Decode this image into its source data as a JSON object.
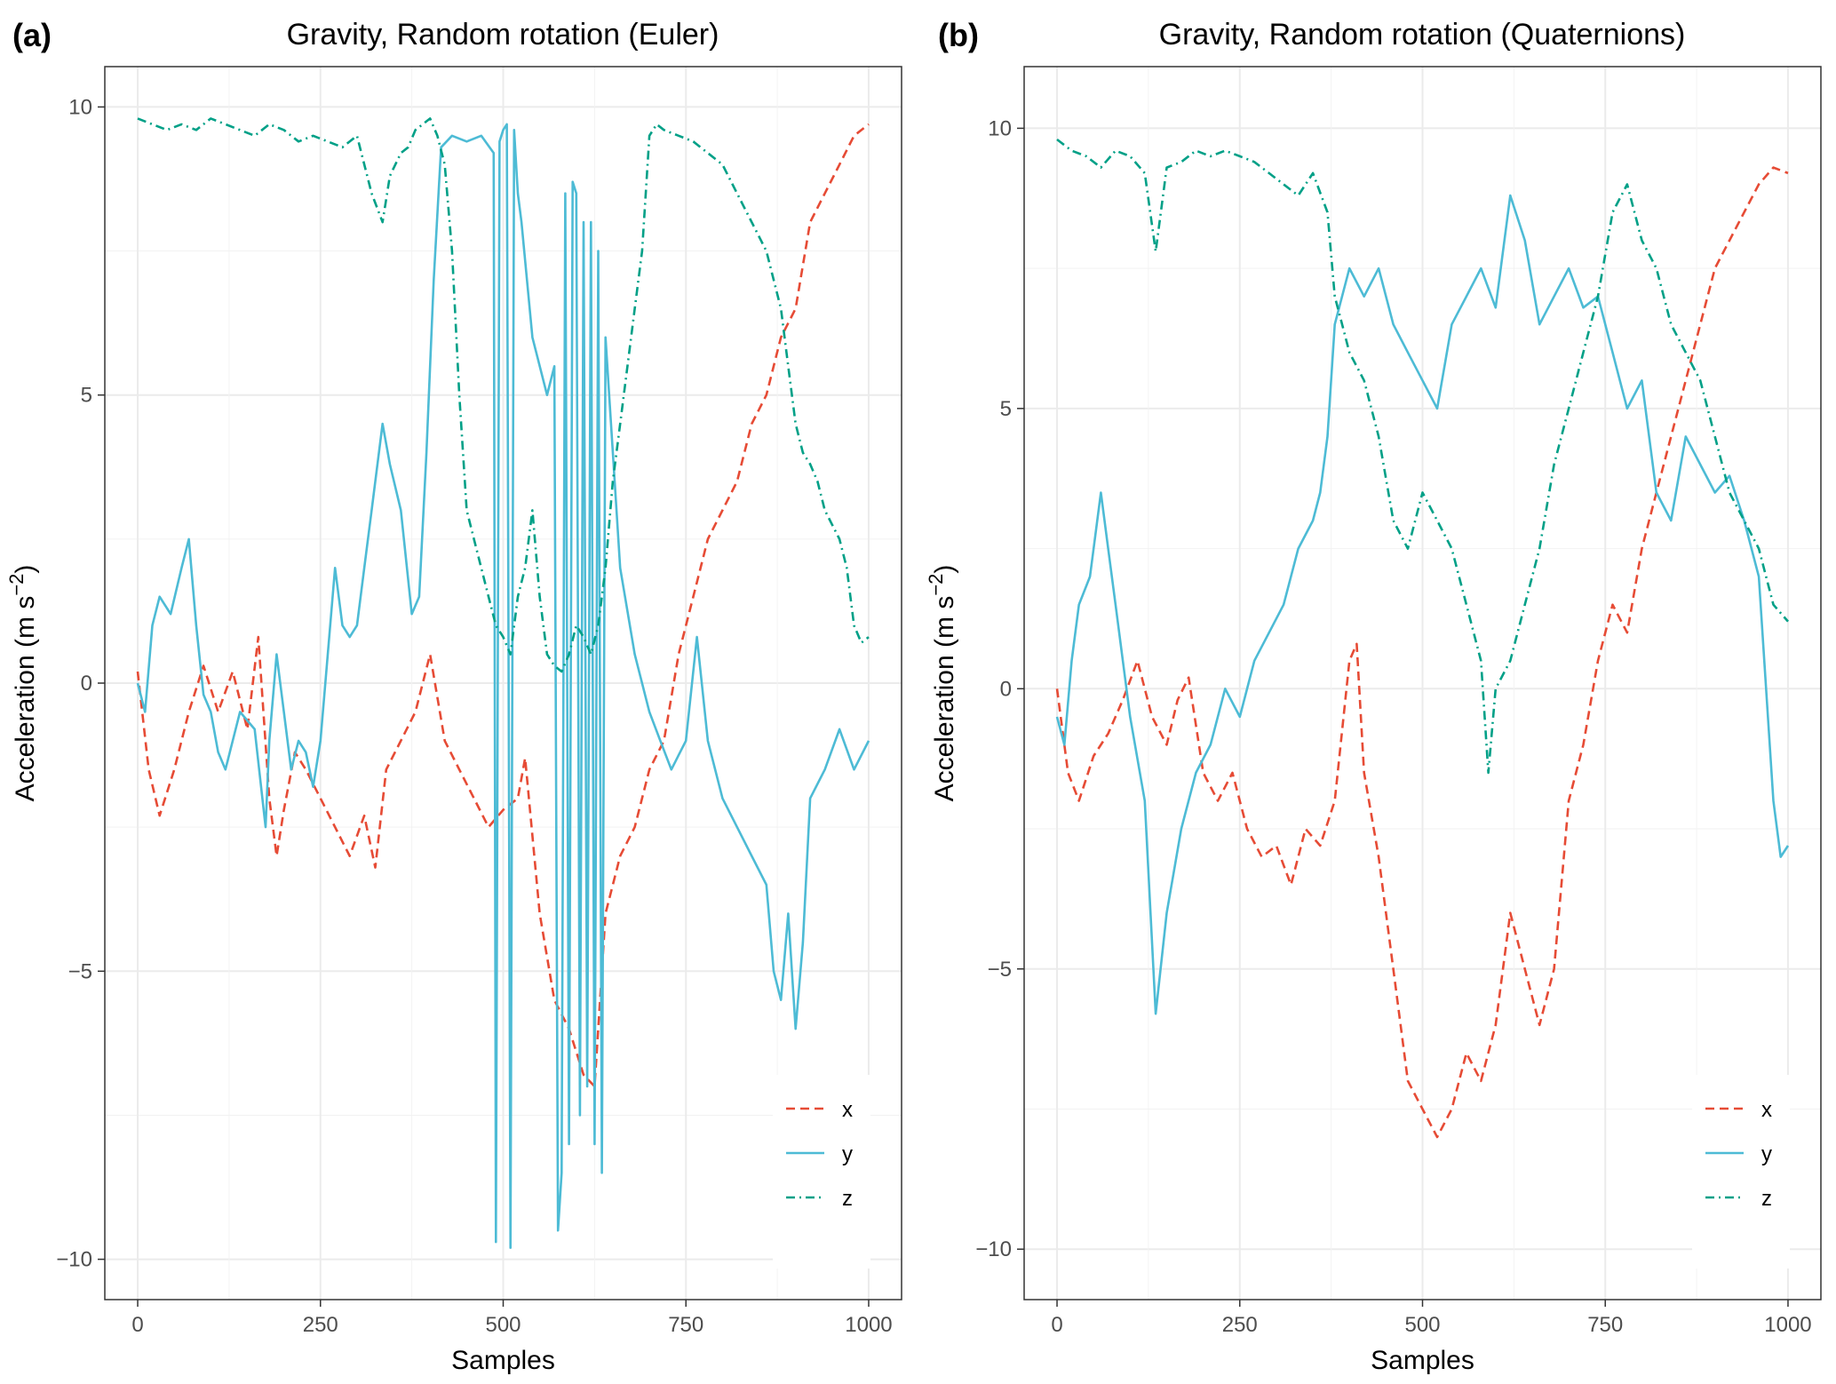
{
  "chart_data": [
    {
      "type": "line",
      "panel_label": "(a)",
      "title": "Gravity, Random rotation (Euler)",
      "xlabel": "Samples",
      "ylabel": "Acceleration (m s",
      "ylabel_exponent": "−2",
      "ylabel_close": ")",
      "xlim": [
        -45,
        1045
      ],
      "ylim": [
        -10.7,
        10.7
      ],
      "xticks": [
        0,
        250,
        500,
        750,
        1000
      ],
      "xtick_labels": [
        "0",
        "250",
        "500",
        "750",
        "1000"
      ],
      "yticks": [
        -10,
        -5,
        0,
        5,
        10
      ],
      "ytick_labels": [
        "−10",
        "−5",
        "0",
        "5",
        "10"
      ],
      "grid": true,
      "legend": {
        "position": "bottom-right",
        "entries": [
          "x",
          "y",
          "z"
        ]
      },
      "series": [
        {
          "name": "x",
          "color": "#E64B35",
          "dash": "dashed",
          "x": [
            0,
            15,
            30,
            50,
            70,
            90,
            110,
            130,
            150,
            165,
            180,
            190,
            200,
            215,
            230,
            250,
            270,
            290,
            310,
            325,
            340,
            360,
            380,
            400,
            420,
            440,
            460,
            480,
            500,
            520,
            530,
            550,
            570,
            590,
            610,
            625,
            640,
            660,
            680,
            700,
            720,
            740,
            760,
            780,
            800,
            820,
            840,
            860,
            880,
            900,
            920,
            940,
            960,
            980,
            1000
          ],
          "y": [
            0.2,
            -1.5,
            -2.3,
            -1.5,
            -0.5,
            0.3,
            -0.5,
            0.2,
            -0.8,
            0.8,
            -2.0,
            -3.0,
            -2.2,
            -1.2,
            -1.5,
            -2.0,
            -2.5,
            -3.0,
            -2.3,
            -3.2,
            -1.5,
            -1.0,
            -0.5,
            0.5,
            -1.0,
            -1.5,
            -2.0,
            -2.5,
            -2.2,
            -2.0,
            -1.3,
            -4.0,
            -5.5,
            -6.0,
            -6.8,
            -7.0,
            -4.0,
            -3.0,
            -2.5,
            -1.5,
            -1.0,
            0.5,
            1.5,
            2.5,
            3.0,
            3.5,
            4.5,
            5.0,
            6.0,
            6.5,
            8.0,
            8.5,
            9.0,
            9.5,
            9.7
          ]
        },
        {
          "name": "y",
          "color": "#4DBBD5",
          "dash": "solid",
          "x": [
            0,
            10,
            20,
            30,
            45,
            60,
            70,
            80,
            90,
            100,
            110,
            120,
            140,
            160,
            175,
            180,
            190,
            200,
            210,
            220,
            230,
            240,
            250,
            260,
            270,
            280,
            290,
            300,
            310,
            320,
            335,
            345,
            360,
            375,
            385,
            395,
            405,
            415,
            430,
            450,
            470,
            487,
            490,
            495,
            500,
            505,
            510,
            515,
            520,
            525,
            540,
            560,
            570,
            575,
            580,
            585,
            590,
            595,
            600,
            605,
            610,
            615,
            620,
            625,
            630,
            635,
            640,
            660,
            680,
            700,
            715,
            730,
            750,
            765,
            780,
            800,
            820,
            840,
            860,
            870,
            880,
            890,
            900,
            910,
            920,
            940,
            960,
            980,
            1000
          ],
          "y": [
            0,
            -0.5,
            1.0,
            1.5,
            1.2,
            2.0,
            2.5,
            1.0,
            -0.2,
            -0.5,
            -1.2,
            -1.5,
            -0.5,
            -0.8,
            -2.5,
            -1.0,
            0.5,
            -0.5,
            -1.5,
            -1.0,
            -1.2,
            -1.8,
            -1.0,
            0.5,
            2.0,
            1.0,
            0.8,
            1.0,
            2.0,
            3.0,
            4.5,
            3.8,
            3.0,
            1.2,
            1.5,
            4.0,
            7.0,
            9.3,
            9.5,
            9.4,
            9.5,
            9.2,
            -9.7,
            9.4,
            9.6,
            9.7,
            -9.8,
            9.6,
            8.5,
            8.0,
            6.0,
            5.0,
            5.5,
            -9.5,
            -8.5,
            8.5,
            -8.0,
            8.7,
            8.5,
            -7.5,
            8.0,
            -7.0,
            8.0,
            -8.0,
            7.5,
            -8.5,
            6.0,
            2.0,
            0.5,
            -0.5,
            -1.0,
            -1.5,
            -1.0,
            0.8,
            -1.0,
            -2.0,
            -2.5,
            -3.0,
            -3.5,
            -5.0,
            -5.5,
            -4.0,
            -6.0,
            -4.5,
            -2.0,
            -1.5,
            -0.8,
            -1.5,
            -1.0
          ]
        },
        {
          "name": "z",
          "color": "#00A087",
          "dash": "dotdash",
          "x": [
            0,
            20,
            40,
            60,
            80,
            100,
            120,
            140,
            160,
            180,
            200,
            220,
            240,
            260,
            280,
            300,
            320,
            335,
            345,
            360,
            370,
            380,
            400,
            410,
            420,
            430,
            440,
            450,
            460,
            470,
            480,
            490,
            500,
            510,
            520,
            530,
            540,
            550,
            560,
            570,
            580,
            590,
            600,
            610,
            620,
            630,
            640,
            650,
            660,
            670,
            680,
            690,
            700,
            710,
            720,
            740,
            760,
            780,
            800,
            820,
            840,
            860,
            870,
            880,
            890,
            900,
            910,
            920,
            930,
            940,
            960,
            970,
            980,
            990,
            1000
          ],
          "y": [
            9.8,
            9.7,
            9.6,
            9.7,
            9.6,
            9.8,
            9.7,
            9.6,
            9.5,
            9.7,
            9.6,
            9.4,
            9.5,
            9.4,
            9.3,
            9.5,
            8.5,
            8.0,
            8.8,
            9.2,
            9.3,
            9.6,
            9.8,
            9.5,
            9.0,
            7.5,
            5.0,
            3.0,
            2.5,
            2.0,
            1.5,
            1.0,
            0.8,
            0.5,
            1.5,
            2.0,
            3.0,
            1.5,
            0.5,
            0.3,
            0.2,
            0.5,
            1.0,
            0.8,
            0.5,
            1.0,
            2.0,
            3.5,
            4.5,
            5.5,
            6.5,
            7.5,
            9.5,
            9.7,
            9.6,
            9.5,
            9.4,
            9.2,
            9.0,
            8.5,
            8.0,
            7.5,
            7.0,
            6.5,
            5.5,
            4.5,
            4.0,
            3.8,
            3.5,
            3.0,
            2.5,
            2.0,
            1.0,
            0.7,
            0.8
          ]
        }
      ]
    },
    {
      "type": "line",
      "panel_label": "(b)",
      "title": "Gravity, Random rotation (Quaternions)",
      "xlabel": "Samples",
      "ylabel": "Acceleration (m s",
      "ylabel_exponent": "−2",
      "ylabel_close": ")",
      "xlim": [
        -45,
        1045
      ],
      "ylim": [
        -10.9,
        11.1
      ],
      "xticks": [
        0,
        250,
        500,
        750,
        1000
      ],
      "xtick_labels": [
        "0",
        "250",
        "500",
        "750",
        "1000"
      ],
      "yticks": [
        -10,
        -5,
        0,
        5,
        10
      ],
      "ytick_labels": [
        "−10",
        "−5",
        "0",
        "5",
        "10"
      ],
      "grid": true,
      "legend": {
        "position": "bottom-right",
        "entries": [
          "x",
          "y",
          "z"
        ]
      },
      "series": [
        {
          "name": "x",
          "color": "#E64B35",
          "dash": "dashed",
          "x": [
            0,
            15,
            30,
            50,
            70,
            90,
            110,
            130,
            150,
            165,
            180,
            200,
            220,
            240,
            260,
            280,
            300,
            320,
            340,
            360,
            380,
            400,
            410,
            420,
            440,
            460,
            480,
            500,
            520,
            540,
            560,
            580,
            600,
            620,
            640,
            660,
            680,
            700,
            720,
            740,
            760,
            780,
            800,
            820,
            840,
            860,
            880,
            900,
            920,
            940,
            960,
            980,
            1000
          ],
          "y": [
            0,
            -1.5,
            -2.0,
            -1.2,
            -0.8,
            -0.2,
            0.5,
            -0.5,
            -1.0,
            -0.2,
            0.2,
            -1.5,
            -2.0,
            -1.5,
            -2.5,
            -3.0,
            -2.8,
            -3.5,
            -2.5,
            -2.8,
            -2.0,
            0.5,
            0.8,
            -1.5,
            -3.0,
            -5.0,
            -7.0,
            -7.5,
            -8.0,
            -7.5,
            -6.5,
            -7.0,
            -6.0,
            -4.0,
            -5.0,
            -6.0,
            -5.0,
            -2.0,
            -1.0,
            0.5,
            1.5,
            1.0,
            2.5,
            3.5,
            4.5,
            5.5,
            6.5,
            7.5,
            8.0,
            8.5,
            9.0,
            9.3,
            9.2
          ]
        },
        {
          "name": "y",
          "color": "#4DBBD5",
          "dash": "solid",
          "x": [
            0,
            10,
            20,
            30,
            45,
            60,
            70,
            80,
            100,
            120,
            135,
            150,
            170,
            190,
            210,
            230,
            250,
            270,
            290,
            310,
            330,
            350,
            360,
            370,
            380,
            400,
            420,
            440,
            460,
            480,
            500,
            520,
            540,
            560,
            580,
            600,
            620,
            640,
            660,
            680,
            700,
            720,
            740,
            760,
            780,
            800,
            820,
            840,
            860,
            880,
            900,
            920,
            940,
            960,
            970,
            980,
            990,
            1000
          ],
          "y": [
            -0.5,
            -1.0,
            0.5,
            1.5,
            2.0,
            3.5,
            2.5,
            1.5,
            -0.5,
            -2.0,
            -5.8,
            -4.0,
            -2.5,
            -1.5,
            -1.0,
            0.0,
            -0.5,
            0.5,
            1.0,
            1.5,
            2.5,
            3.0,
            3.5,
            4.5,
            6.5,
            7.5,
            7.0,
            7.5,
            6.5,
            6.0,
            5.5,
            5.0,
            6.5,
            7.0,
            7.5,
            6.8,
            8.8,
            8.0,
            6.5,
            7.0,
            7.5,
            6.8,
            7.0,
            6.0,
            5.0,
            5.5,
            3.5,
            3.0,
            4.5,
            4.0,
            3.5,
            3.8,
            3.0,
            2.0,
            0.0,
            -2.0,
            -3.0,
            -2.8
          ]
        },
        {
          "name": "z",
          "color": "#00A087",
          "dash": "dotdash",
          "x": [
            0,
            20,
            40,
            60,
            80,
            100,
            120,
            135,
            150,
            170,
            190,
            210,
            230,
            250,
            270,
            290,
            310,
            330,
            350,
            370,
            380,
            390,
            400,
            420,
            440,
            460,
            480,
            500,
            520,
            540,
            560,
            580,
            590,
            600,
            620,
            640,
            660,
            680,
            700,
            720,
            740,
            760,
            780,
            800,
            820,
            840,
            860,
            880,
            900,
            920,
            940,
            960,
            980,
            1000
          ],
          "y": [
            9.8,
            9.6,
            9.5,
            9.3,
            9.6,
            9.5,
            9.2,
            7.8,
            9.3,
            9.4,
            9.6,
            9.5,
            9.6,
            9.5,
            9.4,
            9.2,
            9.0,
            8.8,
            9.2,
            8.5,
            7.0,
            6.5,
            6.0,
            5.5,
            4.5,
            3.0,
            2.5,
            3.5,
            3.0,
            2.5,
            1.5,
            0.5,
            -1.5,
            0.0,
            0.5,
            1.5,
            2.5,
            4.0,
            5.0,
            6.0,
            7.0,
            8.5,
            9.0,
            8.0,
            7.5,
            6.5,
            6.0,
            5.5,
            4.5,
            3.5,
            3.0,
            2.5,
            1.5,
            1.2
          ]
        }
      ]
    }
  ]
}
